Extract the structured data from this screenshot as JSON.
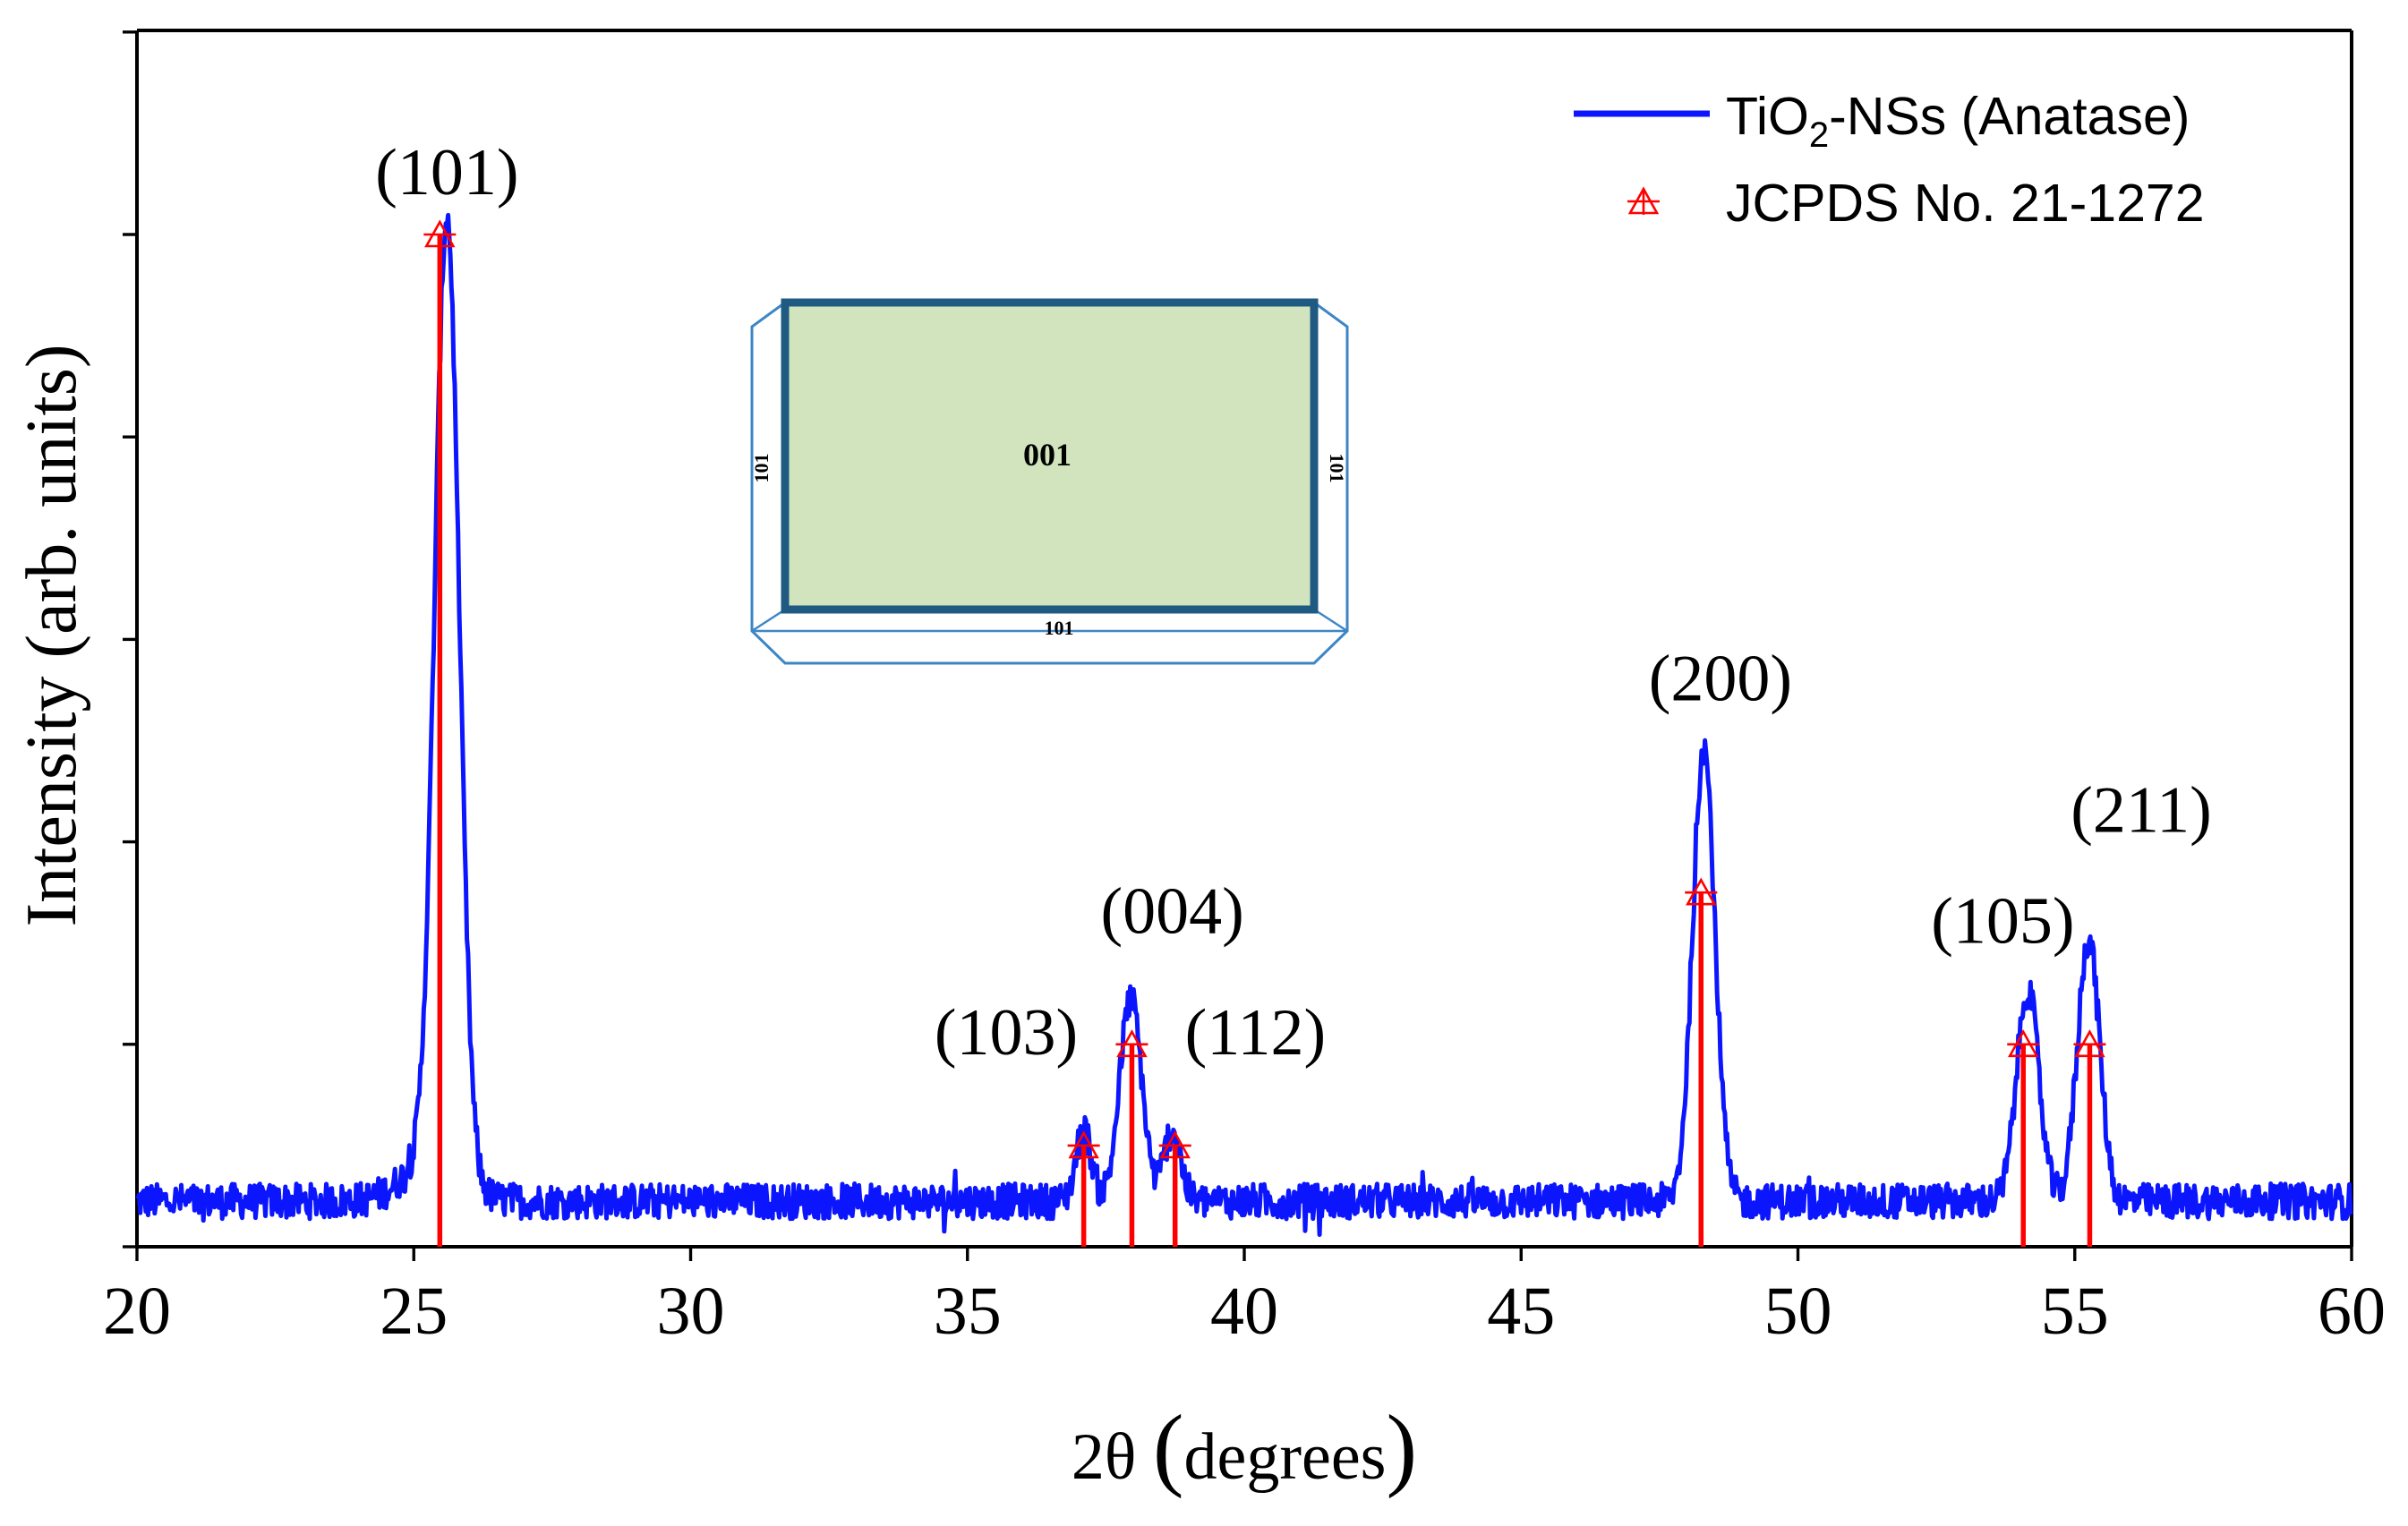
{
  "colors": {
    "pattern": "#0b16ff",
    "reference": "#ff0000",
    "inset_face": "#d2e4bd",
    "inset_edge": "#1f5a82",
    "inset_outline": "#3d86c6"
  },
  "chart_data": {
    "type": "line",
    "title": "",
    "xlabel": {
      "prefix": "2θ ",
      "paren_open": "(",
      "word": "degrees",
      "paren_close": ")"
    },
    "ylabel": "Intensity (arb. units)",
    "xlim": [
      20,
      60
    ],
    "ylim": [
      0,
      1.18
    ],
    "x_ticks": [
      "20",
      "25",
      "30",
      "35",
      "40",
      "45",
      "50",
      "55",
      "60"
    ],
    "y_tick_values": [
      0,
      0.2,
      0.4,
      0.6,
      0.8,
      1.0,
      1.2
    ],
    "grid": false,
    "legend": {
      "position": "top-right",
      "pattern": {
        "prefix": "TiO",
        "subscript": "2",
        "suffix": "-NSs (Anatase)"
      },
      "reference": "JCPDS No. 21-1272"
    },
    "background": 0.045,
    "series": [
      {
        "name": "TiO2-NSs (Anatase)",
        "kind": "xrd-pattern",
        "x_start": 20,
        "x_end": 60,
        "x_step": 0.02,
        "peaks": [
          {
            "x": 25.32,
            "height": 0.04,
            "width": 0.5
          },
          {
            "x": 25.6,
            "height": 0.94,
            "width": 0.22
          },
          {
            "x": 37.1,
            "height": 0.07,
            "width": 0.14
          },
          {
            "x": 37.95,
            "height": 0.2,
            "width": 0.2
          },
          {
            "x": 38.7,
            "height": 0.07,
            "width": 0.15
          },
          {
            "x": 48.3,
            "height": 0.45,
            "width": 0.2
          },
          {
            "x": 54.15,
            "height": 0.21,
            "width": 0.2
          },
          {
            "x": 55.25,
            "height": 0.26,
            "width": 0.2
          }
        ]
      },
      {
        "name": "JCPDS No. 21-1272",
        "kind": "reference-sticks",
        "x": [
          25.47,
          37.1,
          37.97,
          38.75,
          48.25,
          54.07,
          55.27
        ],
        "y": [
          1.0,
          0.1,
          0.2,
          0.1,
          0.35,
          0.2,
          0.2
        ]
      }
    ],
    "annotations": [
      {
        "text": "(101)",
        "x": 25.6,
        "y": 1.04
      },
      {
        "text": "(103)",
        "x": 35.7,
        "y": 0.19
      },
      {
        "text": "(004)",
        "x": 38.7,
        "y": 0.31
      },
      {
        "text": "(112)",
        "x": 40.2,
        "y": 0.19
      },
      {
        "text": "(200)",
        "x": 48.6,
        "y": 0.54
      },
      {
        "text": "(105)",
        "x": 53.7,
        "y": 0.3
      },
      {
        "text": "(211)",
        "x": 56.2,
        "y": 0.41
      }
    ],
    "inset": {
      "description_labels": {
        "top_face": "001",
        "side_left": "101",
        "side_right": "101",
        "side_bottom": "101"
      }
    }
  }
}
